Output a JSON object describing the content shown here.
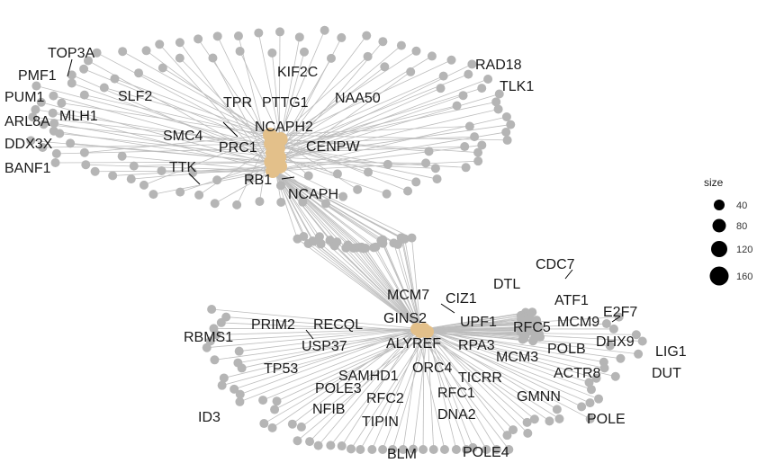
{
  "colors": {
    "edge": "#bdbdbd",
    "node": "#b5b5b5",
    "hub": "#e3c08a",
    "text": "#1a1a1a",
    "legend_dot": "#000000"
  },
  "legend": {
    "title": "size",
    "items": [
      {
        "label": "40"
      },
      {
        "label": "80"
      },
      {
        "label": "120"
      },
      {
        "label": "160"
      }
    ]
  },
  "clusters": [
    {
      "labels": [
        "TOP3A",
        "PMF1",
        "PUM1",
        "ARL8A",
        "MLH1",
        "DDX3X",
        "BANF1",
        "SLF2",
        "SMC4",
        "TTK",
        "TPR",
        "PTTG1",
        "KIF2C",
        "PRC1",
        "NCAPH2",
        "NAA50",
        "RAD18",
        "TLK1",
        "CENPW",
        "RB1",
        "NCAPH"
      ]
    },
    {
      "labels": [
        "CDC7",
        "DTL",
        "ATF1",
        "E2F7",
        "MCM7",
        "CIZ1",
        "GINS2",
        "MCM9",
        "RFC5",
        "UPF1",
        "PRIM2",
        "RECQL",
        "RBMS1",
        "USP37",
        "ALYREF",
        "RPA3",
        "MCM3",
        "POLB",
        "DHX9",
        "LIG1",
        "DUT",
        "ACTR8",
        "TP53",
        "SAMHD1",
        "ORC4",
        "TICRR",
        "POLE3",
        "RFC2",
        "RFC1",
        "GMNN",
        "NFIB",
        "ID3",
        "TIPIN",
        "DNA2",
        "POLE",
        "BLM",
        "POLE4"
      ]
    }
  ]
}
